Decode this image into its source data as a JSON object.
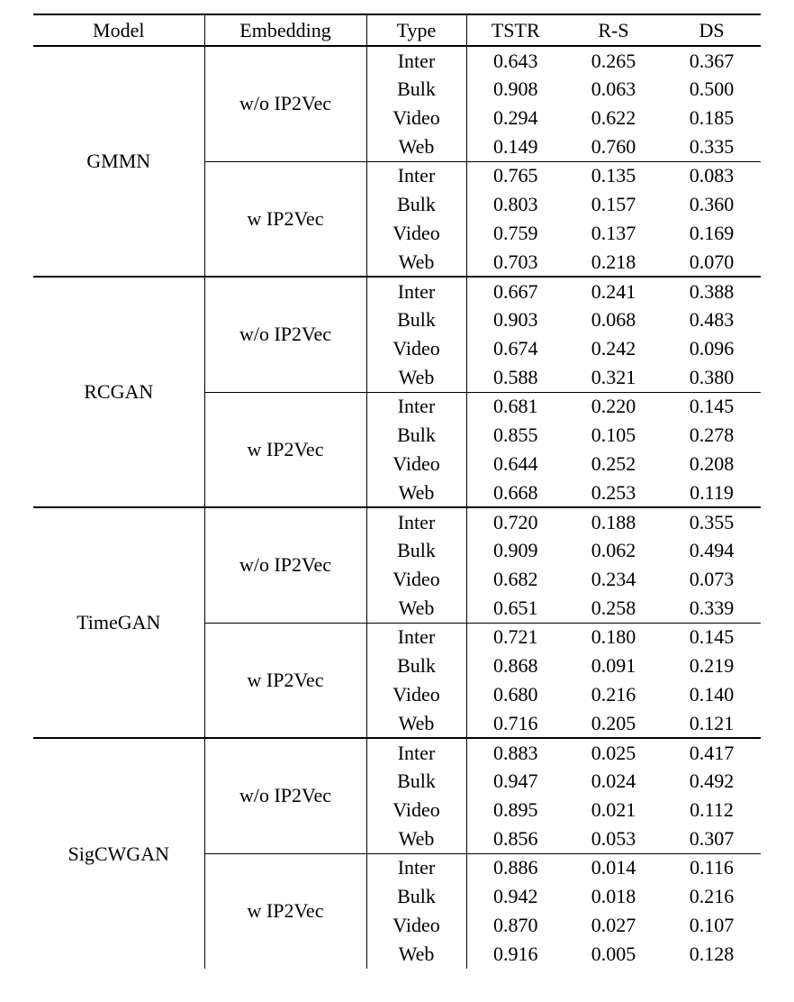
{
  "colors": {
    "background": "#ffffff",
    "text": "#000000",
    "rule": "#000000"
  },
  "table": {
    "headers": [
      "Model",
      "Embedding",
      "Type",
      "TSTR",
      "R-S",
      "DS"
    ],
    "sections": [
      {
        "model": "GMMN",
        "groups": [
          {
            "embedding": "w/o IP2Vec",
            "rows": [
              {
                "type": "Inter",
                "values": [
                  {
                    "v": "0.643",
                    "bold": false
                  },
                  {
                    "v": "0.265",
                    "bold": false
                  },
                  {
                    "v": "0.367",
                    "bold": false
                  }
                ]
              },
              {
                "type": "Bulk",
                "values": [
                  {
                    "v": "0.908",
                    "bold": false
                  },
                  {
                    "v": "0.063",
                    "bold": false
                  },
                  {
                    "v": "0.500",
                    "bold": false
                  }
                ]
              },
              {
                "type": "Video",
                "values": [
                  {
                    "v": "0.294",
                    "bold": false
                  },
                  {
                    "v": "0.622",
                    "bold": false
                  },
                  {
                    "v": "0.185",
                    "bold": false
                  }
                ]
              },
              {
                "type": "Web",
                "values": [
                  {
                    "v": "0.149",
                    "bold": false
                  },
                  {
                    "v": "0.760",
                    "bold": false
                  },
                  {
                    "v": "0.335",
                    "bold": false
                  }
                ]
              }
            ]
          },
          {
            "embedding": "w IP2Vec",
            "rows": [
              {
                "type": "Inter",
                "values": [
                  {
                    "v": "0.765",
                    "bold": false
                  },
                  {
                    "v": "0.135",
                    "bold": true
                  },
                  {
                    "v": "0.083",
                    "bold": true
                  }
                ]
              },
              {
                "type": "Bulk",
                "values": [
                  {
                    "v": "0.803",
                    "bold": false
                  },
                  {
                    "v": "0.157",
                    "bold": false
                  },
                  {
                    "v": "0.360",
                    "bold": true
                  }
                ]
              },
              {
                "type": "Video",
                "values": [
                  {
                    "v": "0.759",
                    "bold": false
                  },
                  {
                    "v": "0.137",
                    "bold": true
                  },
                  {
                    "v": "0.169",
                    "bold": true
                  }
                ]
              },
              {
                "type": "Web",
                "values": [
                  {
                    "v": "0.703",
                    "bold": false
                  },
                  {
                    "v": "0.218",
                    "bold": true
                  },
                  {
                    "v": "0.070",
                    "bold": true
                  }
                ]
              }
            ]
          }
        ]
      },
      {
        "model": "RCGAN",
        "groups": [
          {
            "embedding": "w/o IP2Vec",
            "rows": [
              {
                "type": "Inter",
                "values": [
                  {
                    "v": "0.667",
                    "bold": false
                  },
                  {
                    "v": "0.241",
                    "bold": false
                  },
                  {
                    "v": "0.388",
                    "bold": false
                  }
                ]
              },
              {
                "type": "Bulk",
                "values": [
                  {
                    "v": "0.903",
                    "bold": false
                  },
                  {
                    "v": "0.068",
                    "bold": false
                  },
                  {
                    "v": "0.483",
                    "bold": false
                  }
                ]
              },
              {
                "type": "Video",
                "values": [
                  {
                    "v": "0.674",
                    "bold": false
                  },
                  {
                    "v": "0.242",
                    "bold": false
                  },
                  {
                    "v": "0.096",
                    "bold": false
                  }
                ]
              },
              {
                "type": "Web",
                "values": [
                  {
                    "v": "0.588",
                    "bold": false
                  },
                  {
                    "v": "0.321",
                    "bold": false
                  },
                  {
                    "v": "0.380",
                    "bold": false
                  }
                ]
              }
            ]
          },
          {
            "embedding": "w IP2Vec",
            "rows": [
              {
                "type": "Inter",
                "values": [
                  {
                    "v": "0.681",
                    "bold": false
                  },
                  {
                    "v": "0.220",
                    "bold": true
                  },
                  {
                    "v": "0.145",
                    "bold": true
                  }
                ]
              },
              {
                "type": "Bulk",
                "values": [
                  {
                    "v": "0.855",
                    "bold": false
                  },
                  {
                    "v": "0.105",
                    "bold": false
                  },
                  {
                    "v": "0.278",
                    "bold": true
                  }
                ]
              },
              {
                "type": "Video",
                "values": [
                  {
                    "v": "0.644",
                    "bold": false
                  },
                  {
                    "v": "0.252",
                    "bold": false
                  },
                  {
                    "v": "0.208",
                    "bold": false
                  }
                ]
              },
              {
                "type": "Web",
                "values": [
                  {
                    "v": "0.668",
                    "bold": false
                  },
                  {
                    "v": "0.253",
                    "bold": true
                  },
                  {
                    "v": "0.119",
                    "bold": true
                  }
                ]
              }
            ]
          }
        ]
      },
      {
        "model": "TimeGAN",
        "groups": [
          {
            "embedding": "w/o IP2Vec",
            "rows": [
              {
                "type": "Inter",
                "values": [
                  {
                    "v": "0.720",
                    "bold": false
                  },
                  {
                    "v": "0.188",
                    "bold": false
                  },
                  {
                    "v": "0.355",
                    "bold": false
                  }
                ]
              },
              {
                "type": "Bulk",
                "values": [
                  {
                    "v": "0.909",
                    "bold": false
                  },
                  {
                    "v": "0.062",
                    "bold": false
                  },
                  {
                    "v": "0.494",
                    "bold": false
                  }
                ]
              },
              {
                "type": "Video",
                "values": [
                  {
                    "v": "0.682",
                    "bold": false
                  },
                  {
                    "v": "0.234",
                    "bold": false
                  },
                  {
                    "v": "0.073",
                    "bold": false
                  }
                ]
              },
              {
                "type": "Web",
                "values": [
                  {
                    "v": "0.651",
                    "bold": false
                  },
                  {
                    "v": "0.258",
                    "bold": false
                  },
                  {
                    "v": "0.339",
                    "bold": false
                  }
                ]
              }
            ]
          },
          {
            "embedding": "w IP2Vec",
            "rows": [
              {
                "type": "Inter",
                "values": [
                  {
                    "v": "0.721",
                    "bold": false
                  },
                  {
                    "v": "0.180",
                    "bold": true
                  },
                  {
                    "v": "0.145",
                    "bold": true
                  }
                ]
              },
              {
                "type": "Bulk",
                "values": [
                  {
                    "v": "0.868",
                    "bold": false
                  },
                  {
                    "v": "0.091",
                    "bold": false
                  },
                  {
                    "v": "0.219",
                    "bold": true
                  }
                ]
              },
              {
                "type": "Video",
                "values": [
                  {
                    "v": "0.680",
                    "bold": false
                  },
                  {
                    "v": "0.216",
                    "bold": true
                  },
                  {
                    "v": "0.140",
                    "bold": false
                  }
                ]
              },
              {
                "type": "Web",
                "values": [
                  {
                    "v": "0.716",
                    "bold": false
                  },
                  {
                    "v": "0.205",
                    "bold": true
                  },
                  {
                    "v": "0.121",
                    "bold": true
                  }
                ]
              }
            ]
          }
        ]
      },
      {
        "model": "SigCWGAN",
        "groups": [
          {
            "embedding": "w/o IP2Vec",
            "rows": [
              {
                "type": "Inter",
                "values": [
                  {
                    "v": "0.883",
                    "bold": false
                  },
                  {
                    "v": "0.025",
                    "bold": false
                  },
                  {
                    "v": "0.417",
                    "bold": false
                  }
                ]
              },
              {
                "type": "Bulk",
                "values": [
                  {
                    "v": "0.947",
                    "bold": false
                  },
                  {
                    "v": "0.024",
                    "bold": false
                  },
                  {
                    "v": "0.492",
                    "bold": false
                  }
                ]
              },
              {
                "type": "Video",
                "values": [
                  {
                    "v": "0.895",
                    "bold": false
                  },
                  {
                    "v": "0.021",
                    "bold": false
                  },
                  {
                    "v": "0.112",
                    "bold": false
                  }
                ]
              },
              {
                "type": "Web",
                "values": [
                  {
                    "v": "0.856",
                    "bold": false
                  },
                  {
                    "v": "0.053",
                    "bold": false
                  },
                  {
                    "v": "0.307",
                    "bold": false
                  }
                ]
              }
            ]
          },
          {
            "embedding": "w IP2Vec",
            "rows": [
              {
                "type": "Inter",
                "values": [
                  {
                    "v": "0.886",
                    "bold": false
                  },
                  {
                    "v": "0.014",
                    "bold": true
                  },
                  {
                    "v": "0.116",
                    "bold": true
                  }
                ]
              },
              {
                "type": "Bulk",
                "values": [
                  {
                    "v": "0.942",
                    "bold": false
                  },
                  {
                    "v": "0.018",
                    "bold": true
                  },
                  {
                    "v": "0.216",
                    "bold": true
                  }
                ]
              },
              {
                "type": "Video",
                "values": [
                  {
                    "v": "0.870",
                    "bold": false
                  },
                  {
                    "v": "0.027",
                    "bold": false
                  },
                  {
                    "v": "0.107",
                    "bold": true
                  }
                ]
              },
              {
                "type": "Web",
                "values": [
                  {
                    "v": "0.916",
                    "bold": false
                  },
                  {
                    "v": "0.005",
                    "bold": true
                  },
                  {
                    "v": "0.128",
                    "bold": true
                  }
                ]
              }
            ]
          }
        ]
      }
    ]
  }
}
